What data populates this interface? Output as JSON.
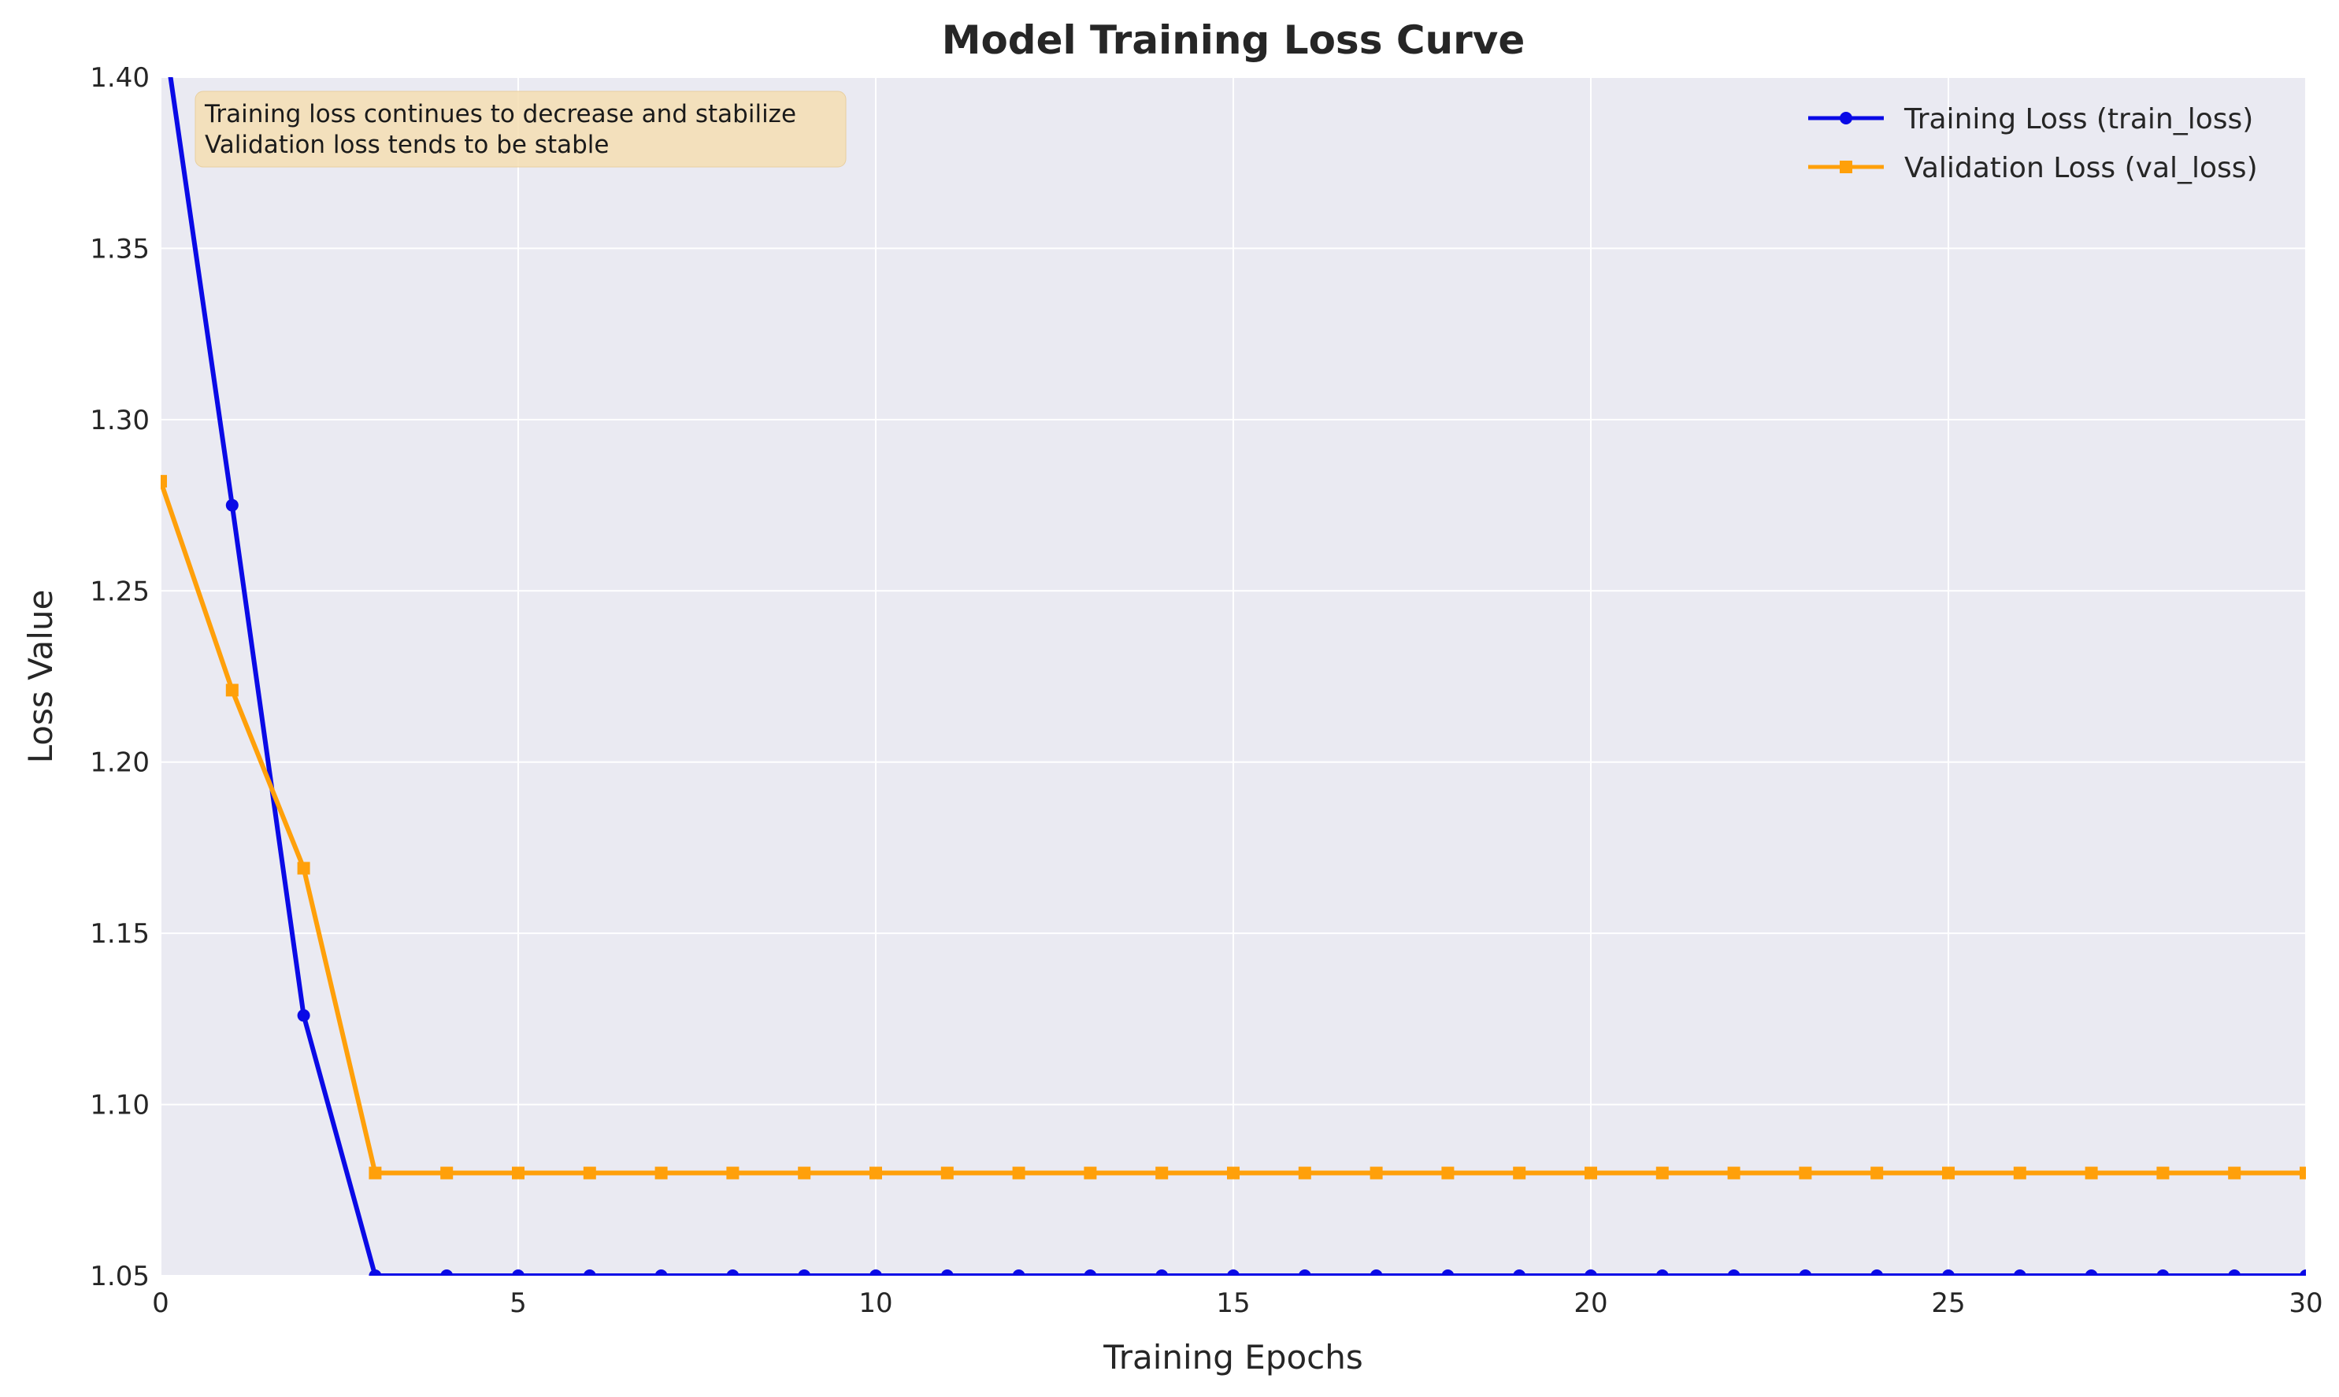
{
  "chart_data": {
    "type": "line",
    "title": "Model Training Loss Curve",
    "xlabel": "Training Epochs",
    "ylabel": "Loss Value",
    "xlim": [
      0,
      30
    ],
    "ylim": [
      1.05,
      1.4
    ],
    "xticks": [
      "0",
      "5",
      "10",
      "15",
      "20",
      "25",
      "30"
    ],
    "yticks": [
      "1.05",
      "1.10",
      "1.15",
      "1.20",
      "1.25",
      "1.30",
      "1.35",
      "1.40"
    ],
    "grid": true,
    "legend_position": "top-right",
    "annotation": [
      "Training loss continues to decrease and stabilize",
      "Validation loss tends to be stable"
    ],
    "x": [
      0,
      1,
      2,
      3,
      4,
      5,
      6,
      7,
      8,
      9,
      10,
      11,
      12,
      13,
      14,
      15,
      16,
      17,
      18,
      19,
      20,
      21,
      22,
      23,
      24,
      25,
      26,
      27,
      28,
      29,
      30
    ],
    "series": [
      {
        "name": "Training Loss (train_loss)",
        "color": "#0a0ae6",
        "marker": "circle",
        "values": [
          1.42,
          1.275,
          1.126,
          1.05,
          1.05,
          1.05,
          1.05,
          1.05,
          1.05,
          1.05,
          1.05,
          1.05,
          1.05,
          1.05,
          1.05,
          1.05,
          1.05,
          1.05,
          1.05,
          1.05,
          1.05,
          1.05,
          1.05,
          1.05,
          1.05,
          1.05,
          1.05,
          1.05,
          1.05,
          1.05,
          1.05
        ]
      },
      {
        "name": "Validation Loss (val_loss)",
        "color": "#ffa00a",
        "marker": "square",
        "values": [
          1.282,
          1.221,
          1.169,
          1.08,
          1.08,
          1.08,
          1.08,
          1.08,
          1.08,
          1.08,
          1.08,
          1.08,
          1.08,
          1.08,
          1.08,
          1.08,
          1.08,
          1.08,
          1.08,
          1.08,
          1.08,
          1.08,
          1.08,
          1.08,
          1.08,
          1.08,
          1.08,
          1.08,
          1.08,
          1.08,
          1.08
        ]
      }
    ]
  }
}
